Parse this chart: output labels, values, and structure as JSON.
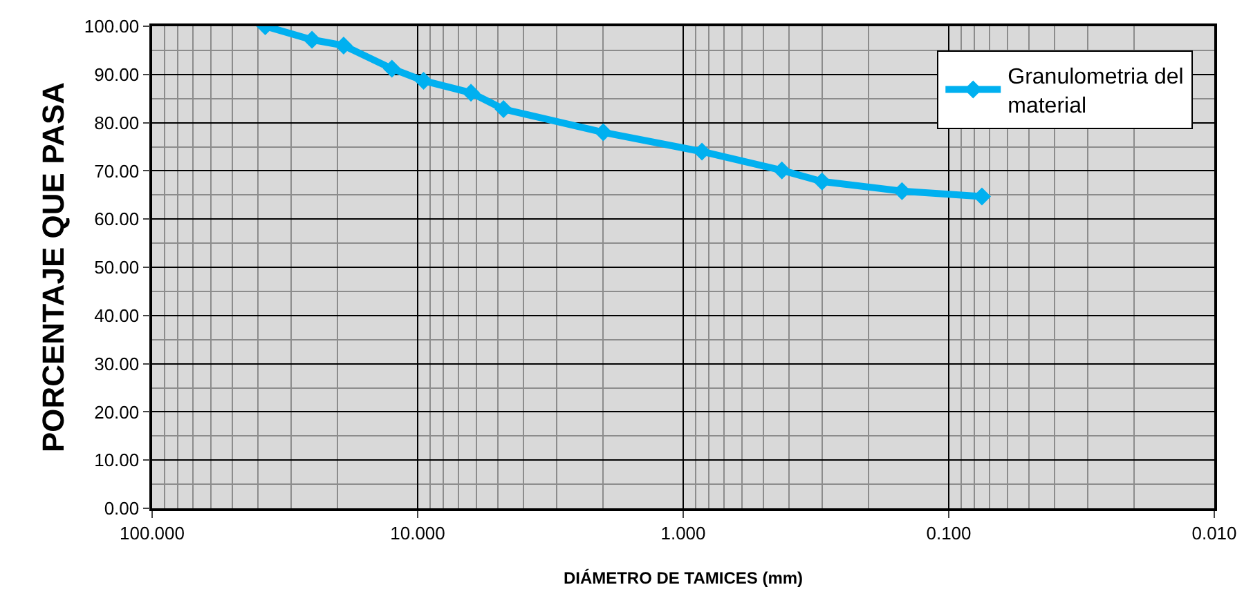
{
  "chart_data": {
    "type": "line",
    "xlabel": "DIÁMETRO DE TAMICES (mm)",
    "ylabel": "PORCENTAJE QUE PASA",
    "x": [
      37.5,
      25.0,
      19.0,
      12.5,
      9.5,
      6.3,
      4.75,
      2.0,
      0.85,
      0.425,
      0.3,
      0.15,
      0.075
    ],
    "series": [
      {
        "name": "Granulometria del material",
        "color": "#00b0f0",
        "values": [
          100.0,
          97.2,
          96.0,
          91.2,
          88.7,
          86.2,
          82.8,
          78.0,
          74.0,
          70.1,
          67.8,
          65.8,
          64.7
        ]
      }
    ],
    "log": "x",
    "xlim": [
      100,
      0.01
    ],
    "xticks": [
      {
        "value": 100,
        "label": "100.000"
      },
      {
        "value": 10,
        "label": "10.000"
      },
      {
        "value": 1,
        "label": "1.000"
      },
      {
        "value": 0.1,
        "label": "0.100"
      },
      {
        "value": 0.01,
        "label": "0.010"
      }
    ],
    "ylim": [
      0,
      100
    ],
    "yticks": [
      {
        "value": 0,
        "label": "0.00"
      },
      {
        "value": 10,
        "label": "10.00"
      },
      {
        "value": 20,
        "label": "20.00"
      },
      {
        "value": 30,
        "label": "30.00"
      },
      {
        "value": 40,
        "label": "40.00"
      },
      {
        "value": 50,
        "label": "50.00"
      },
      {
        "value": 60,
        "label": "60.00"
      },
      {
        "value": 70,
        "label": "70.00"
      },
      {
        "value": 80,
        "label": "80.00"
      },
      {
        "value": 90,
        "label": "90.00"
      },
      {
        "value": 100,
        "label": "100.00"
      }
    ],
    "grid": true,
    "legend": "top right",
    "marker": "diamond",
    "line_style": "solid"
  }
}
